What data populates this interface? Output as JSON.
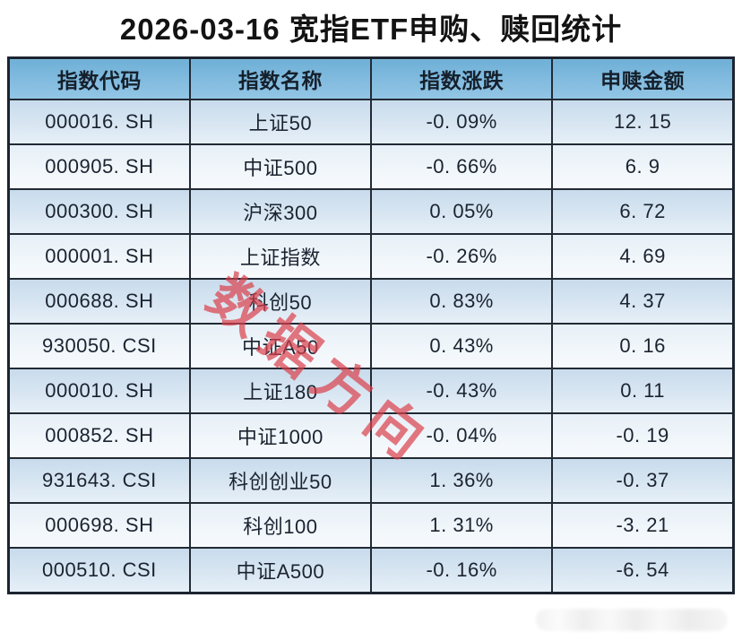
{
  "page": {
    "title": "2026-03-16 宽指ETF申购、赎回统计"
  },
  "table": {
    "headers": [
      "指数代码",
      "指数名称",
      "指数涨跌",
      "申赎金额"
    ],
    "rows": [
      {
        "code": "000016. SH",
        "name": "上证50",
        "change": "-0. 09%",
        "amount": "12. 15"
      },
      {
        "code": "000905. SH",
        "name": "中证500",
        "change": "-0. 66%",
        "amount": "6. 9"
      },
      {
        "code": "000300. SH",
        "name": "沪深300",
        "change": "0. 05%",
        "amount": "6. 72"
      },
      {
        "code": "000001. SH",
        "name": "上证指数",
        "change": "-0. 26%",
        "amount": "4. 69"
      },
      {
        "code": "000688. SH",
        "name": "科创50",
        "change": "0. 83%",
        "amount": "4. 37"
      },
      {
        "code": "930050. CSI",
        "name": "中证A50",
        "change": "0. 43%",
        "amount": "0. 16"
      },
      {
        "code": "000010. SH",
        "name": "上证180",
        "change": "-0. 43%",
        "amount": "0. 11"
      },
      {
        "code": "000852. SH",
        "name": "中证1000",
        "change": "-0. 04%",
        "amount": "-0. 19"
      },
      {
        "code": "931643. CSI",
        "name": "科创创业50",
        "change": "1. 36%",
        "amount": "-0. 37"
      },
      {
        "code": "000698. SH",
        "name": "科创100",
        "change": "1. 31%",
        "amount": "-3. 21"
      },
      {
        "code": "000510. CSI",
        "name": "中证A500",
        "change": "-0. 16%",
        "amount": "-6. 54"
      }
    ]
  },
  "watermark": {
    "diagonal_text": "数据方向",
    "diagonal_color": "#da3e4a"
  },
  "colors": {
    "header_bg": "#7cb8dc",
    "row_odd_bg": "#cddeee",
    "row_even_bg": "#e9f1f8",
    "border": "#1d2530",
    "title_text": "#131313"
  },
  "chart_data": {
    "type": "table",
    "title": "2026-03-16 宽指ETF申购、赎回统计",
    "columns": [
      "指数代码",
      "指数名称",
      "指数涨跌",
      "申赎金额"
    ],
    "rows": [
      [
        "000016.SH",
        "上证50",
        "-0.09%",
        12.15
      ],
      [
        "000905.SH",
        "中证500",
        "-0.66%",
        6.9
      ],
      [
        "000300.SH",
        "沪深300",
        "0.05%",
        6.72
      ],
      [
        "000001.SH",
        "上证指数",
        "-0.26%",
        4.69
      ],
      [
        "000688.SH",
        "科创50",
        "0.83%",
        4.37
      ],
      [
        "930050.CSI",
        "中证A50",
        "0.43%",
        0.16
      ],
      [
        "000010.SH",
        "上证180",
        "-0.43%",
        0.11
      ],
      [
        "000852.SH",
        "中证1000",
        "-0.04%",
        -0.19
      ],
      [
        "931643.CSI",
        "科创创业50",
        "1.36%",
        -0.37
      ],
      [
        "000698.SH",
        "科创100",
        "1.31%",
        -3.21
      ],
      [
        "000510.CSI",
        "中证A500",
        "-0.16%",
        -6.54
      ]
    ]
  }
}
